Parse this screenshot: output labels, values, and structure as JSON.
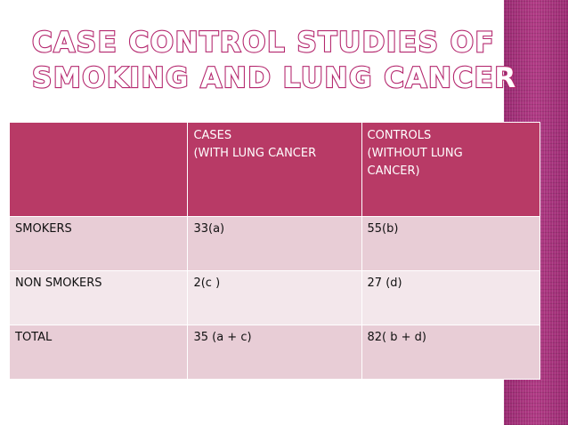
{
  "slide": {
    "title_line1": "CASE CONTROL STUDIES OF",
    "title_line2": "SMOKING AND LUNG CANCER",
    "accent_color": "#b83a66",
    "stripe_color": "#a8327c"
  },
  "table": {
    "headers": [
      "",
      "CASES\n(WITH LUNG CANCER",
      "CONTROLS\n(WITHOUT LUNG\nCANCER)"
    ],
    "rows": [
      [
        "SMOKERS",
        "33(a)",
        "55(b)"
      ],
      [
        "NON SMOKERS",
        "2(c )",
        "27 (d)"
      ],
      [
        "TOTAL",
        "35 (a + c)",
        "82( b + d)"
      ]
    ]
  }
}
